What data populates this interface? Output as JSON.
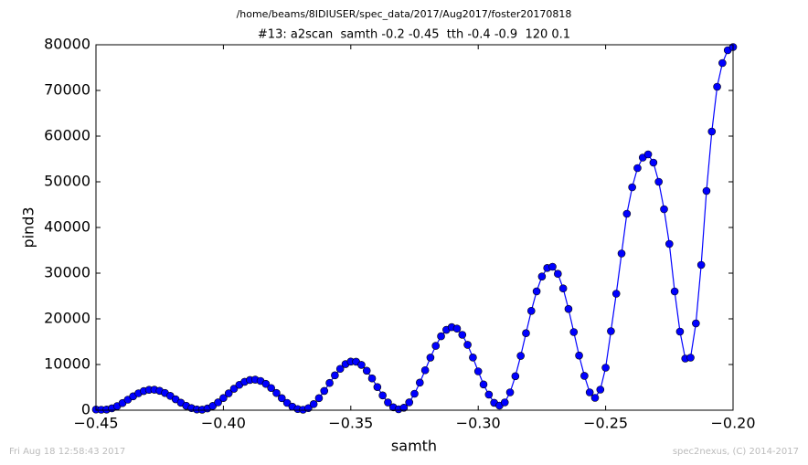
{
  "chart_data": {
    "type": "line",
    "suptitle": "/home/beams/8IDIUSER/spec_data/2017/Aug2017/foster20170818",
    "title": "#13: a2scan  samth -0.2 -0.45  tth -0.4 -0.9  120 0.1",
    "x_label": "samth",
    "y_label": "pind3",
    "footer_left": "Fri Aug 18 12:58:43 2017",
    "footer_right": "spec2nexus, (C) 2014-2017",
    "color": "#0000ff",
    "marker": "circle",
    "x": [
      -0.45,
      -0.44792,
      -0.44583,
      -0.44375,
      -0.44167,
      -0.43958,
      -0.4375,
      -0.43542,
      -0.43333,
      -0.43125,
      -0.42917,
      -0.42708,
      -0.425,
      -0.42292,
      -0.42083,
      -0.41875,
      -0.41667,
      -0.41458,
      -0.4125,
      -0.41042,
      -0.40833,
      -0.40625,
      -0.40417,
      -0.40208,
      -0.4,
      -0.39792,
      -0.39583,
      -0.39375,
      -0.39167,
      -0.38958,
      -0.3875,
      -0.38542,
      -0.38333,
      -0.38125,
      -0.37917,
      -0.37708,
      -0.375,
      -0.37292,
      -0.37083,
      -0.36875,
      -0.36667,
      -0.36458,
      -0.3625,
      -0.36042,
      -0.35833,
      -0.35625,
      -0.35417,
      -0.35208,
      -0.35,
      -0.34792,
      -0.34583,
      -0.34375,
      -0.34167,
      -0.33958,
      -0.3375,
      -0.33542,
      -0.33333,
      -0.33125,
      -0.32917,
      -0.32708,
      -0.325,
      -0.32292,
      -0.32083,
      -0.31875,
      -0.31667,
      -0.31458,
      -0.3125,
      -0.31042,
      -0.30833,
      -0.30625,
      -0.30417,
      -0.30208,
      -0.3,
      -0.29792,
      -0.29583,
      -0.29375,
      -0.29167,
      -0.28958,
      -0.2875,
      -0.28542,
      -0.28333,
      -0.28125,
      -0.27917,
      -0.27708,
      -0.275,
      -0.27292,
      -0.27083,
      -0.26875,
      -0.26667,
      -0.26458,
      -0.2625,
      -0.26042,
      -0.25833,
      -0.25625,
      -0.25417,
      -0.25208,
      -0.25,
      -0.24792,
      -0.24583,
      -0.24375,
      -0.24167,
      -0.23958,
      -0.2375,
      -0.23542,
      -0.23333,
      -0.23125,
      -0.22917,
      -0.22708,
      -0.225,
      -0.22292,
      -0.22083,
      -0.21875,
      -0.21667,
      -0.21458,
      -0.2125,
      -0.21042,
      -0.20833,
      -0.20625,
      -0.20417,
      -0.20208,
      -0.2
    ],
    "values": [
      150,
      100,
      140,
      410,
      900,
      1560,
      2300,
      3040,
      3700,
      4190,
      4460,
      4480,
      4240,
      3770,
      3130,
      2390,
      1640,
      970,
      460,
      160,
      120,
      380,
      930,
      1710,
      2670,
      3690,
      4690,
      5550,
      6220,
      6610,
      6690,
      6400,
      5760,
      4850,
      3760,
      2630,
      1600,
      770,
      250,
      100,
      450,
      1330,
      2630,
      4220,
      5960,
      7630,
      9050,
      10090,
      10640,
      10610,
      9920,
      8640,
      6960,
      5070,
      3230,
      1690,
      630,
      200,
      540,
      1710,
      3600,
      6030,
      8750,
      11520,
      14080,
      16180,
      17590,
      18180,
      17860,
      16500,
      14310,
      11530,
      8500,
      5630,
      3410,
      1620,
      1000,
      1700,
      3900,
      7440,
      11890,
      16860,
      21740,
      26010,
      29270,
      31130,
      31400,
      29860,
      26660,
      22170,
      17100,
      11970,
      7510,
      3900,
      2700,
      4500,
      9300,
      17300,
      25500,
      34300,
      43000,
      48800,
      53000,
      55300,
      56000,
      54200,
      50000,
      44000,
      36400,
      26000,
      17200,
      11300,
      11500,
      19000,
      31800,
      48000,
      61000,
      70800,
      76000,
      78800,
      79500
    ],
    "xlim": [
      -0.45,
      -0.2
    ],
    "ylim": [
      0,
      80000
    ],
    "xticks": [
      {
        "value": -0.45,
        "label": "−0.45"
      },
      {
        "value": -0.4,
        "label": "−0.40"
      },
      {
        "value": -0.35,
        "label": "−0.35"
      },
      {
        "value": -0.3,
        "label": "−0.30"
      },
      {
        "value": -0.25,
        "label": "−0.25"
      },
      {
        "value": -0.2,
        "label": "−0.20"
      }
    ],
    "yticks": [
      0,
      10000,
      20000,
      30000,
      40000,
      50000,
      60000,
      70000,
      80000
    ],
    "grid": false
  }
}
